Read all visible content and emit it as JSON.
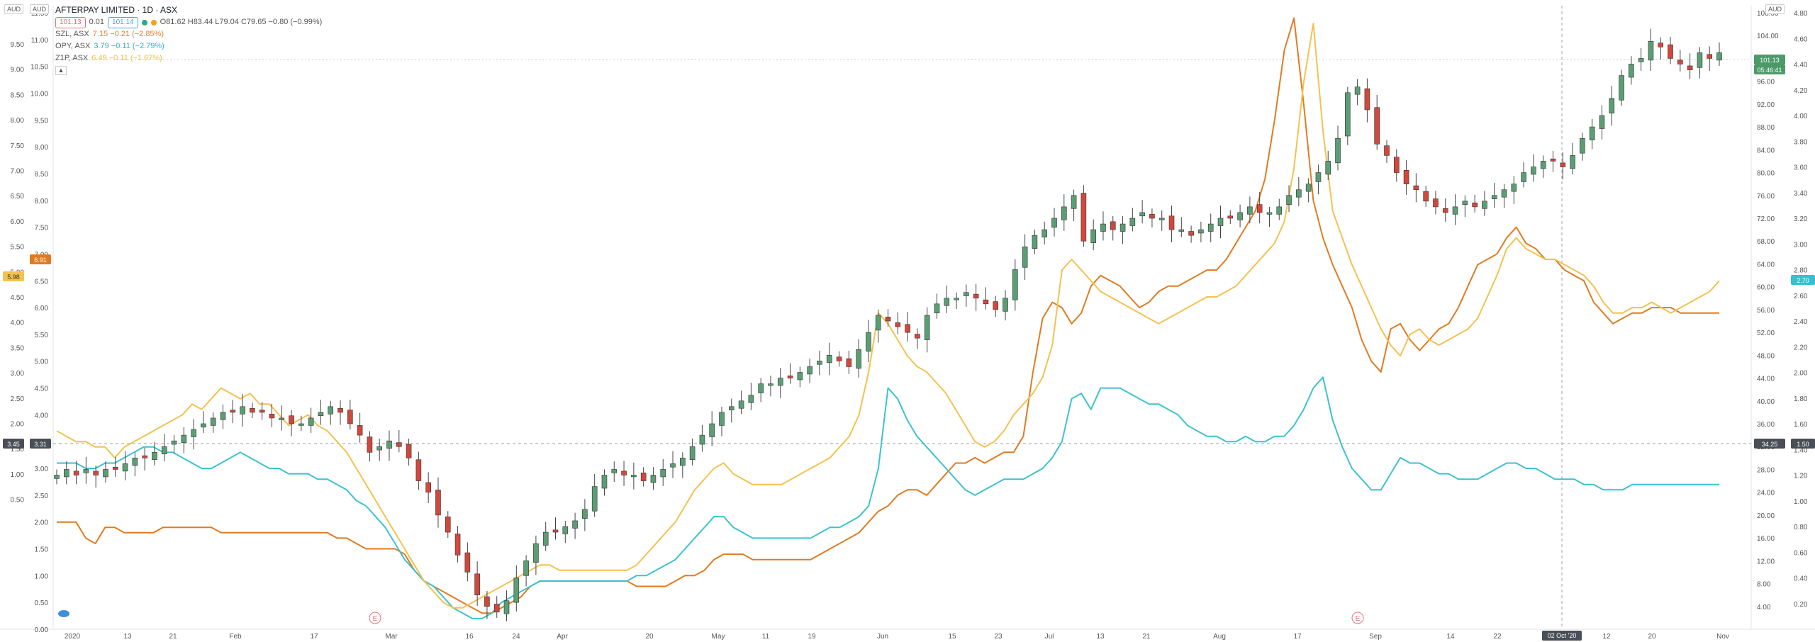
{
  "legend": {
    "title": "AFTERPAY LIMITED · 1D · ASX",
    "price_box": "101.13",
    "spread": "0.01",
    "price_box2": "101.14",
    "ohlc": "O81.62 H83.44 L79.04 C79.65 −0.80 (−0.99%)",
    "compare": [
      {
        "symbol": "SZL, ASX",
        "value": "7.15 −0.21 (−2.85%)",
        "color": "#f57c1f"
      },
      {
        "symbol": "OPY, ASX",
        "value": "3.79 −0.11 (−2.79%)",
        "color": "#26b7d1"
      },
      {
        "symbol": "Z1P, ASX",
        "value": "6.49 −0.11 (−1.67%)",
        "color": "#f5be3c"
      }
    ],
    "collapse_icon": "chevron-up-icon"
  },
  "currency_labels": {
    "left1": "AUD",
    "left2": "AUD",
    "right": "AUD"
  },
  "colors": {
    "up": "#5b9e74",
    "down": "#d2473c",
    "szl": "#e07b22",
    "opy": "#3cc2d0",
    "z1p": "#f3c24f"
  },
  "chart_data": {
    "type": "line",
    "x_ticks": [
      "2020",
      "13",
      "21",
      "Feb",
      "17",
      "Mar",
      "16",
      "24",
      "Apr",
      "20",
      "May",
      "11",
      "19",
      "Jun",
      "15",
      "23",
      "Jul",
      "13",
      "21",
      "Aug",
      "17",
      "Sep",
      "14",
      "22",
      "02 Oct '20",
      "12",
      "20",
      "Nov"
    ],
    "left_axis_a": {
      "ticks": [
        "11.50",
        "11.00",
        "10.50",
        "10.00",
        "9.50",
        "9.00",
        "8.50",
        "8.00",
        "7.50",
        "7.00",
        "6.50",
        "6.00",
        "5.50",
        "5.00",
        "4.50",
        "4.00",
        "3.50",
        "3.00",
        "2.50",
        "2.00",
        "1.50",
        "1.00",
        "0.50",
        "0.00"
      ],
      "range": [
        0.0,
        11.5
      ]
    },
    "left_axis_b": {
      "ticks": [
        "9.50",
        "9.00",
        "8.50",
        "8.00",
        "7.50",
        "7.00",
        "6.50",
        "6.00",
        "5.50",
        "5.00",
        "4.50",
        "4.00",
        "3.50",
        "3.00",
        "2.50",
        "2.00",
        "1.50",
        "1.00",
        "0.50"
      ]
    },
    "right_axis_price": {
      "ticks": [
        "108.00",
        "104.00",
        "100.00",
        "96.00",
        "92.00",
        "88.00",
        "84.00",
        "80.00",
        "76.00",
        "72.00",
        "68.00",
        "64.00",
        "60.00",
        "56.00",
        "52.00",
        "48.00",
        "44.00",
        "40.00",
        "36.00",
        "32.00",
        "28.00",
        "24.00",
        "20.00",
        "16.00",
        "12.00",
        "8.00",
        "4.00"
      ],
      "range": [
        0,
        108
      ]
    },
    "right_axis_b": {
      "ticks": [
        "4.80",
        "4.60",
        "4.40",
        "4.20",
        "4.00",
        "3.80",
        "3.60",
        "3.40",
        "3.20",
        "3.00",
        "2.80",
        "2.60",
        "2.40",
        "2.20",
        "2.00",
        "1.80",
        "1.60",
        "1.40",
        "1.20",
        "1.00",
        "0.80",
        "0.60",
        "0.40",
        "0.20"
      ],
      "range": [
        0.0,
        4.8
      ]
    },
    "price_labels": {
      "last": "101.13",
      "countdown": "05:46:41",
      "crosshair": "34.25",
      "crosshair_right": "1.50",
      "opy_last": "2.70",
      "left_cross_a": "3.45",
      "left_cross_b": "3.31",
      "left_z1p": "5.98",
      "left_szl": "6.91"
    },
    "crosshair_date": "02 Oct '20",
    "earnings_markers": [
      "E",
      "E"
    ],
    "afterpay_close": [
      27,
      28,
      27,
      28,
      27,
      28,
      28,
      29,
      30,
      30,
      31,
      32,
      33,
      34,
      35,
      36,
      37,
      38,
      38,
      39,
      38,
      38,
      37,
      37,
      36,
      36,
      37,
      38,
      39,
      38,
      36,
      34,
      31,
      32,
      33,
      32,
      30,
      26,
      24,
      20,
      17,
      13,
      10,
      6,
      4,
      3,
      5,
      9,
      12,
      15,
      17,
      17,
      18,
      19,
      21,
      25,
      27,
      28,
      27,
      27,
      26,
      27,
      28,
      29,
      30,
      32,
      34,
      36,
      38,
      39,
      40,
      41,
      43,
      43,
      44,
      44,
      45,
      46,
      47,
      48,
      47,
      46,
      49,
      52,
      55,
      54,
      53,
      52,
      51,
      55,
      57,
      58,
      58,
      59,
      58,
      57,
      56,
      58,
      63,
      67,
      69,
      70,
      72,
      74,
      76,
      68,
      70,
      71,
      70,
      71,
      72,
      73,
      72,
      72,
      70,
      70,
      69,
      70,
      71,
      72,
      72,
      73,
      74,
      73,
      73,
      74,
      76,
      77,
      78,
      80,
      82,
      86,
      94,
      95,
      91,
      85,
      83,
      80,
      78,
      77,
      75,
      74,
      73,
      74,
      75,
      74,
      75,
      76,
      77,
      78,
      80,
      81,
      82,
      82,
      81,
      83,
      86,
      88,
      90,
      93,
      97,
      99,
      100,
      103,
      102,
      100,
      99,
      98,
      101,
      100,
      101
    ],
    "series": [
      {
        "name": "SZL, ASX",
        "values": [
          2.0,
          2.0,
          2.0,
          1.7,
          1.6,
          1.9,
          1.9,
          1.8,
          1.8,
          1.8,
          1.8,
          1.9,
          1.9,
          1.9,
          1.9,
          1.9,
          1.9,
          1.8,
          1.8,
          1.8,
          1.8,
          1.8,
          1.8,
          1.8,
          1.8,
          1.8,
          1.8,
          1.8,
          1.8,
          1.7,
          1.7,
          1.6,
          1.5,
          1.5,
          1.5,
          1.5,
          1.4,
          1.1,
          0.9,
          0.8,
          0.7,
          0.6,
          0.5,
          0.4,
          0.3,
          0.3,
          0.4,
          0.5,
          0.6,
          0.8,
          0.9,
          0.9,
          0.9,
          0.9,
          0.9,
          0.9,
          0.9,
          0.9,
          0.9,
          0.9,
          0.8,
          0.8,
          0.8,
          0.8,
          0.9,
          1.0,
          1.0,
          1.1,
          1.3,
          1.4,
          1.4,
          1.4,
          1.3,
          1.3,
          1.3,
          1.3,
          1.3,
          1.3,
          1.3,
          1.4,
          1.5,
          1.6,
          1.7,
          1.8,
          2.0,
          2.2,
          2.3,
          2.5,
          2.6,
          2.6,
          2.5,
          2.7,
          2.9,
          3.1,
          3.1,
          3.2,
          3.1,
          3.2,
          3.3,
          3.3,
          3.6,
          4.8,
          5.8,
          6.1,
          6.0,
          5.7,
          5.9,
          6.4,
          6.6,
          6.5,
          6.4,
          6.2,
          6.0,
          6.1,
          6.3,
          6.4,
          6.4,
          6.5,
          6.6,
          6.7,
          6.7,
          6.9,
          7.2,
          7.5,
          7.8,
          8.4,
          9.5,
          10.8,
          11.4,
          9.8,
          8.0,
          7.3,
          6.8,
          6.4,
          6.0,
          5.4,
          5.0,
          4.8,
          5.6,
          5.7,
          5.4,
          5.2,
          5.4,
          5.6,
          5.7,
          6.0,
          6.4,
          6.8,
          6.9,
          7.0,
          7.3,
          7.5,
          7.2,
          7.1,
          6.9,
          6.9,
          6.7,
          6.6,
          6.5,
          6.1,
          5.9,
          5.7,
          5.8,
          5.9,
          5.9,
          6.0,
          6.0,
          6.0,
          5.9,
          5.9,
          5.9,
          5.9,
          5.9
        ]
      },
      {
        "name": "OPY, ASX",
        "values": [
          3.1,
          3.1,
          3.1,
          3.0,
          3.0,
          3.1,
          3.1,
          3.2,
          3.3,
          3.4,
          3.4,
          3.3,
          3.3,
          3.2,
          3.1,
          3.0,
          3.0,
          3.1,
          3.2,
          3.3,
          3.2,
          3.1,
          3.0,
          3.0,
          2.9,
          2.9,
          2.9,
          2.8,
          2.8,
          2.7,
          2.6,
          2.4,
          2.3,
          2.1,
          1.9,
          1.6,
          1.3,
          1.1,
          0.9,
          0.8,
          0.6,
          0.4,
          0.3,
          0.2,
          0.2,
          0.3,
          0.5,
          0.6,
          0.7,
          0.8,
          0.9,
          0.9,
          0.9,
          0.9,
          0.9,
          0.9,
          0.9,
          0.9,
          0.9,
          0.9,
          1.0,
          1.0,
          1.1,
          1.2,
          1.3,
          1.5,
          1.7,
          1.9,
          2.1,
          2.1,
          1.9,
          1.8,
          1.7,
          1.7,
          1.7,
          1.7,
          1.7,
          1.7,
          1.7,
          1.8,
          1.9,
          1.9,
          2.0,
          2.1,
          2.3,
          3.0,
          4.5,
          4.3,
          3.9,
          3.6,
          3.4,
          3.2,
          3.0,
          2.8,
          2.6,
          2.5,
          2.6,
          2.7,
          2.8,
          2.8,
          2.8,
          2.9,
          3.0,
          3.2,
          3.5,
          4.3,
          4.4,
          4.1,
          4.5,
          4.5,
          4.5,
          4.4,
          4.3,
          4.2,
          4.2,
          4.1,
          4.0,
          3.8,
          3.7,
          3.6,
          3.6,
          3.5,
          3.5,
          3.6,
          3.5,
          3.5,
          3.6,
          3.6,
          3.8,
          4.1,
          4.5,
          4.7,
          3.9,
          3.4,
          3.0,
          2.8,
          2.6,
          2.6,
          2.9,
          3.2,
          3.1,
          3.1,
          3.0,
          2.9,
          2.9,
          2.8,
          2.8,
          2.8,
          2.9,
          3.0,
          3.1,
          3.1,
          3.0,
          3.0,
          2.9,
          2.8,
          2.8,
          2.8,
          2.7,
          2.7,
          2.6,
          2.6,
          2.6,
          2.7,
          2.7,
          2.7,
          2.7,
          2.7,
          2.7,
          2.7,
          2.7,
          2.7,
          2.7
        ]
      },
      {
        "name": "Z1P, ASX",
        "values": [
          3.7,
          3.6,
          3.5,
          3.5,
          3.4,
          3.4,
          3.2,
          3.4,
          3.5,
          3.6,
          3.7,
          3.8,
          3.9,
          4.0,
          4.2,
          4.1,
          4.3,
          4.5,
          4.4,
          4.3,
          4.4,
          4.2,
          4.2,
          4.0,
          3.8,
          3.9,
          4.0,
          3.8,
          3.7,
          3.5,
          3.3,
          3.0,
          2.7,
          2.4,
          2.1,
          1.8,
          1.5,
          1.2,
          0.9,
          0.7,
          0.5,
          0.4,
          0.4,
          0.5,
          0.6,
          0.7,
          0.8,
          0.9,
          1.0,
          1.1,
          1.2,
          1.2,
          1.1,
          1.1,
          1.1,
          1.1,
          1.1,
          1.1,
          1.1,
          1.1,
          1.2,
          1.4,
          1.6,
          1.8,
          2.0,
          2.3,
          2.6,
          2.8,
          3.0,
          3.1,
          2.9,
          2.8,
          2.7,
          2.7,
          2.7,
          2.7,
          2.8,
          2.9,
          3.0,
          3.1,
          3.2,
          3.4,
          3.6,
          4.0,
          4.8,
          5.9,
          5.7,
          5.4,
          5.1,
          4.9,
          4.8,
          4.6,
          4.4,
          4.1,
          3.8,
          3.5,
          3.4,
          3.5,
          3.7,
          4.0,
          4.2,
          4.4,
          4.7,
          5.3,
          6.7,
          6.9,
          6.7,
          6.5,
          6.3,
          6.2,
          6.1,
          6.0,
          5.9,
          5.8,
          5.7,
          5.8,
          5.9,
          6.0,
          6.1,
          6.2,
          6.2,
          6.3,
          6.4,
          6.6,
          6.8,
          7.0,
          7.2,
          7.6,
          8.6,
          10.2,
          11.3,
          9.3,
          7.8,
          7.3,
          6.8,
          6.4,
          6.0,
          5.6,
          5.3,
          5.1,
          5.5,
          5.6,
          5.4,
          5.3,
          5.4,
          5.5,
          5.6,
          5.8,
          6.2,
          6.6,
          7.1,
          7.3,
          7.1,
          7.0,
          6.9,
          6.9,
          6.8,
          6.7,
          6.6,
          6.4,
          6.1,
          5.9,
          5.9,
          6.0,
          6.0,
          6.1,
          6.0,
          5.9,
          6.0,
          6.1,
          6.2,
          6.3,
          6.5
        ]
      }
    ]
  }
}
